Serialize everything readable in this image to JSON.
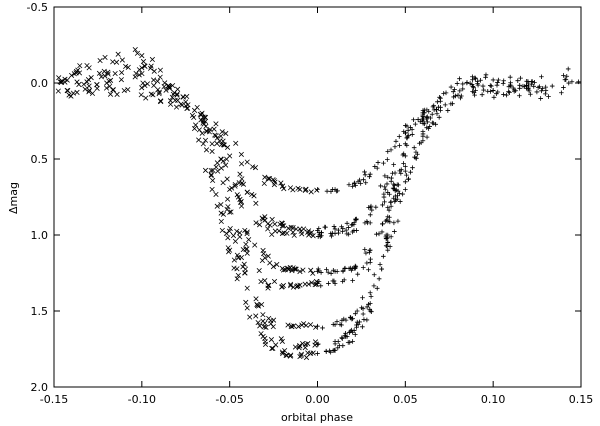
{
  "chart_data": {
    "type": "scatter",
    "title": "",
    "xlabel": "orbital phase",
    "ylabel": "Δmag",
    "xlim": [
      -0.15,
      0.15
    ],
    "ylim": [
      2.0,
      -0.5
    ],
    "y_inverted": true,
    "grid": false,
    "legend": "none",
    "x_ticks": [
      "-0.15",
      "-0.10",
      "-0.05",
      "0.00",
      "0.05",
      "0.10",
      "0.15"
    ],
    "y_ticks": [
      "-0.5",
      "0.0",
      "0.5",
      "1.0",
      "1.5",
      "2.0"
    ],
    "x_tick_values": [
      -0.15,
      -0.1,
      -0.05,
      0.0,
      0.05,
      0.1,
      0.15
    ],
    "y_tick_values": [
      -0.5,
      0.0,
      0.5,
      1.0,
      1.5,
      2.0
    ],
    "marker_styles": {
      "before_phase_zero": "x",
      "after_phase_zero": "+"
    },
    "series": [
      {
        "marker": "mixed",
        "depth": 0.7,
        "points": [
          [
            -0.15,
            0.0
          ],
          [
            -0.13,
            -0.1
          ],
          [
            -0.1,
            -0.18
          ],
          [
            -0.085,
            0.02
          ],
          [
            -0.07,
            0.18
          ],
          [
            -0.055,
            0.35
          ],
          [
            -0.04,
            0.52
          ],
          [
            -0.03,
            0.62
          ],
          [
            -0.02,
            0.68
          ],
          [
            -0.01,
            0.7
          ],
          [
            0.0,
            0.7
          ],
          [
            0.01,
            0.7
          ],
          [
            0.02,
            0.68
          ],
          [
            0.03,
            0.6
          ],
          [
            0.04,
            0.45
          ],
          [
            0.05,
            0.33
          ],
          [
            0.06,
            0.22
          ],
          [
            0.07,
            0.1
          ],
          [
            0.085,
            0.0
          ],
          [
            0.1,
            -0.02
          ],
          [
            0.12,
            0.0
          ],
          [
            0.14,
            -0.05
          ],
          [
            0.15,
            0.0
          ]
        ]
      },
      {
        "marker": "mixed",
        "depth": 0.95,
        "points": [
          [
            -0.14,
            -0.05
          ],
          [
            -0.12,
            0.0
          ],
          [
            -0.1,
            -0.1
          ],
          [
            -0.08,
            0.08
          ],
          [
            -0.065,
            0.25
          ],
          [
            -0.05,
            0.48
          ],
          [
            -0.04,
            0.72
          ],
          [
            -0.03,
            0.88
          ],
          [
            -0.02,
            0.94
          ],
          [
            -0.01,
            0.96
          ],
          [
            0.0,
            0.97
          ],
          [
            0.01,
            0.96
          ],
          [
            0.02,
            0.93
          ],
          [
            0.03,
            0.82
          ],
          [
            0.04,
            0.62
          ],
          [
            0.05,
            0.4
          ],
          [
            0.06,
            0.25
          ],
          [
            0.07,
            0.12
          ],
          [
            0.09,
            0.05
          ],
          [
            0.11,
            0.02
          ],
          [
            0.13,
            0.05
          ]
        ]
      },
      {
        "marker": "mixed",
        "depth": 1.0,
        "points": [
          [
            -0.055,
            0.5
          ],
          [
            -0.045,
            0.75
          ],
          [
            -0.035,
            0.92
          ],
          [
            -0.02,
            0.99
          ],
          [
            -0.005,
            1.0
          ],
          [
            0.01,
            0.99
          ],
          [
            0.02,
            0.98
          ],
          [
            0.03,
            0.92
          ],
          [
            0.04,
            0.72
          ],
          [
            0.05,
            0.48
          ]
        ]
      },
      {
        "marker": "mixed",
        "depth": 1.25,
        "points": [
          [
            -0.15,
            0.05
          ],
          [
            -0.13,
            0.02
          ],
          [
            -0.11,
            0.05
          ],
          [
            -0.09,
            0.06
          ],
          [
            -0.075,
            0.15
          ],
          [
            -0.06,
            0.4
          ],
          [
            -0.05,
            0.7
          ],
          [
            -0.04,
            0.98
          ],
          [
            -0.03,
            1.15
          ],
          [
            -0.02,
            1.22
          ],
          [
            -0.01,
            1.24
          ],
          [
            0.0,
            1.24
          ],
          [
            0.01,
            1.24
          ],
          [
            0.02,
            1.22
          ],
          [
            0.03,
            1.1
          ],
          [
            0.04,
            0.82
          ],
          [
            0.05,
            0.55
          ],
          [
            0.06,
            0.32
          ],
          [
            0.07,
            0.16
          ],
          [
            0.08,
            0.08
          ],
          [
            0.1,
            0.05
          ],
          [
            0.12,
            0.04
          ],
          [
            0.14,
            0.03
          ]
        ]
      },
      {
        "marker": "mixed",
        "depth": 1.35,
        "points": [
          [
            -0.06,
            0.45
          ],
          [
            -0.05,
            0.85
          ],
          [
            -0.04,
            1.12
          ],
          [
            -0.03,
            1.3
          ],
          [
            -0.02,
            1.34
          ],
          [
            -0.01,
            1.33
          ],
          [
            0.0,
            1.32
          ],
          [
            0.01,
            1.32
          ],
          [
            0.02,
            1.3
          ],
          [
            0.03,
            1.18
          ],
          [
            0.04,
            0.88
          ],
          [
            0.05,
            0.58
          ]
        ]
      },
      {
        "marker": "mixed",
        "depth": 1.6,
        "points": [
          [
            -0.065,
            0.4
          ],
          [
            -0.055,
            0.8
          ],
          [
            -0.045,
            1.15
          ],
          [
            -0.035,
            1.42
          ],
          [
            -0.025,
            1.56
          ],
          [
            -0.015,
            1.6
          ],
          [
            0.0,
            1.6
          ],
          [
            0.01,
            1.59
          ],
          [
            0.02,
            1.55
          ],
          [
            0.03,
            1.38
          ],
          [
            0.04,
            1.0
          ],
          [
            0.05,
            0.65
          ],
          [
            0.06,
            0.35
          ]
        ]
      },
      {
        "marker": "mixed",
        "depth": 1.72,
        "points": [
          [
            -0.04,
            1.35
          ],
          [
            -0.03,
            1.58
          ],
          [
            -0.02,
            1.7
          ],
          [
            -0.01,
            1.73
          ],
          [
            0.0,
            1.72
          ],
          [
            0.01,
            1.7
          ],
          [
            0.02,
            1.64
          ],
          [
            0.03,
            1.45
          ],
          [
            0.04,
            1.05
          ]
        ]
      },
      {
        "marker": "mixed",
        "depth": 1.8,
        "points": [
          [
            -0.07,
            0.3
          ],
          [
            -0.06,
            0.7
          ],
          [
            -0.05,
            1.1
          ],
          [
            -0.04,
            1.48
          ],
          [
            -0.03,
            1.68
          ],
          [
            -0.02,
            1.77
          ],
          [
            -0.01,
            1.8
          ],
          [
            0.0,
            1.78
          ],
          [
            0.01,
            1.76
          ],
          [
            0.02,
            1.7
          ],
          [
            0.03,
            1.5
          ],
          [
            0.04,
            1.1
          ],
          [
            0.05,
            0.7
          ],
          [
            0.06,
            0.38
          ],
          [
            0.07,
            0.18
          ]
        ]
      }
    ]
  }
}
